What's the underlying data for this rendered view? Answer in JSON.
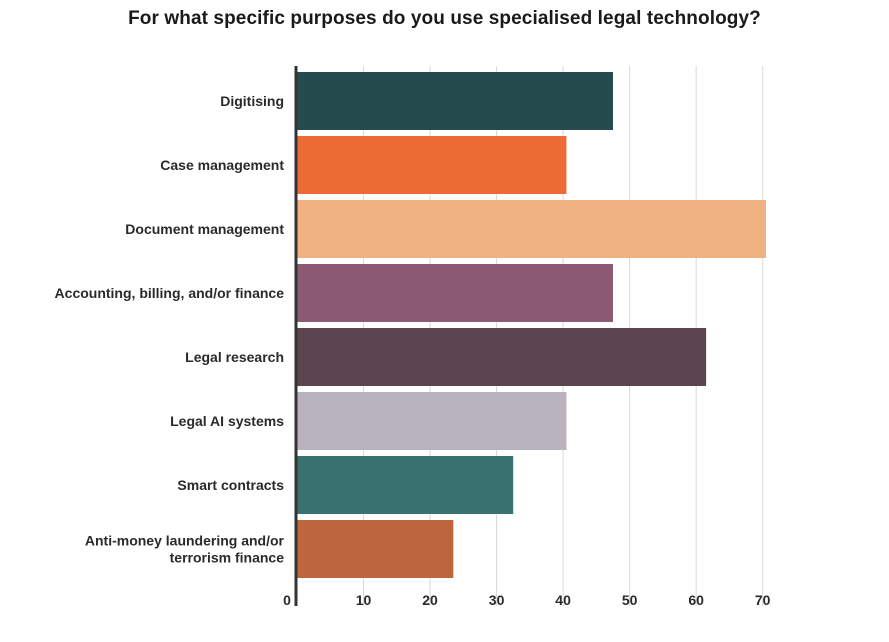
{
  "chart_data": {
    "type": "bar",
    "orientation": "horizontal",
    "title": "For what specific purposes do you use specialised legal technology?",
    "xlabel": "",
    "ylabel": "",
    "categories": [
      [
        "Digitising"
      ],
      [
        "Case management"
      ],
      [
        "Document management"
      ],
      [
        "Accounting, billing, and/or finance"
      ],
      [
        "Legal research"
      ],
      [
        "Legal AI systems"
      ],
      [
        "Smart contracts"
      ],
      [
        "Anti-money laundering and/or",
        "terrorism finance"
      ]
    ],
    "values": [
      47.5,
      40.5,
      70.5,
      47.5,
      61.5,
      40.5,
      32.5,
      23.5
    ],
    "colors": [
      "#254B4F",
      "#EC6A33",
      "#F0B282",
      "#8B5A74",
      "#5B4650",
      "#B9B3BF",
      "#3A7272",
      "#BD663D"
    ],
    "xlim": [
      0,
      70.5
    ],
    "xticks": [
      0,
      10,
      20,
      30,
      40,
      50,
      60,
      70
    ],
    "grid": true,
    "legend": "none"
  }
}
